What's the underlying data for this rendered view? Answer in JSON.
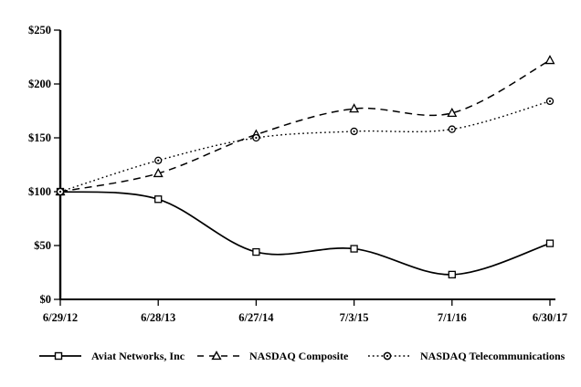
{
  "figure": {
    "background": "#ffffff",
    "ink_color": "#000000"
  },
  "chart_data": {
    "type": "line",
    "title": "",
    "xlabel": "",
    "ylabel": "",
    "categories": [
      "6/29/12",
      "6/28/13",
      "6/27/14",
      "7/3/15",
      "7/1/16",
      "6/30/17"
    ],
    "series": [
      {
        "name": "Aviat Networks, Inc",
        "marker": "square",
        "line_style": "solid",
        "values": [
          100,
          93,
          44,
          47,
          23,
          52
        ]
      },
      {
        "name": "NASDAQ Composite",
        "marker": "triangle",
        "line_style": "dashed",
        "values": [
          100,
          117,
          153,
          177,
          173,
          222
        ]
      },
      {
        "name": "NASDAQ Telecommunications",
        "marker": "circle",
        "line_style": "dotted",
        "values": [
          100,
          129,
          150,
          156,
          158,
          184
        ]
      }
    ],
    "y_axis": {
      "lim": [
        0,
        250
      ],
      "ticks": [
        {
          "v": 0,
          "label": "$0"
        },
        {
          "v": 50,
          "label": "$50"
        },
        {
          "v": 100,
          "label": "$100"
        },
        {
          "v": 150,
          "label": "$150"
        },
        {
          "v": 200,
          "label": "$200"
        },
        {
          "v": 250,
          "label": "$250"
        }
      ]
    },
    "grid": false,
    "legend_position": "bottom"
  }
}
